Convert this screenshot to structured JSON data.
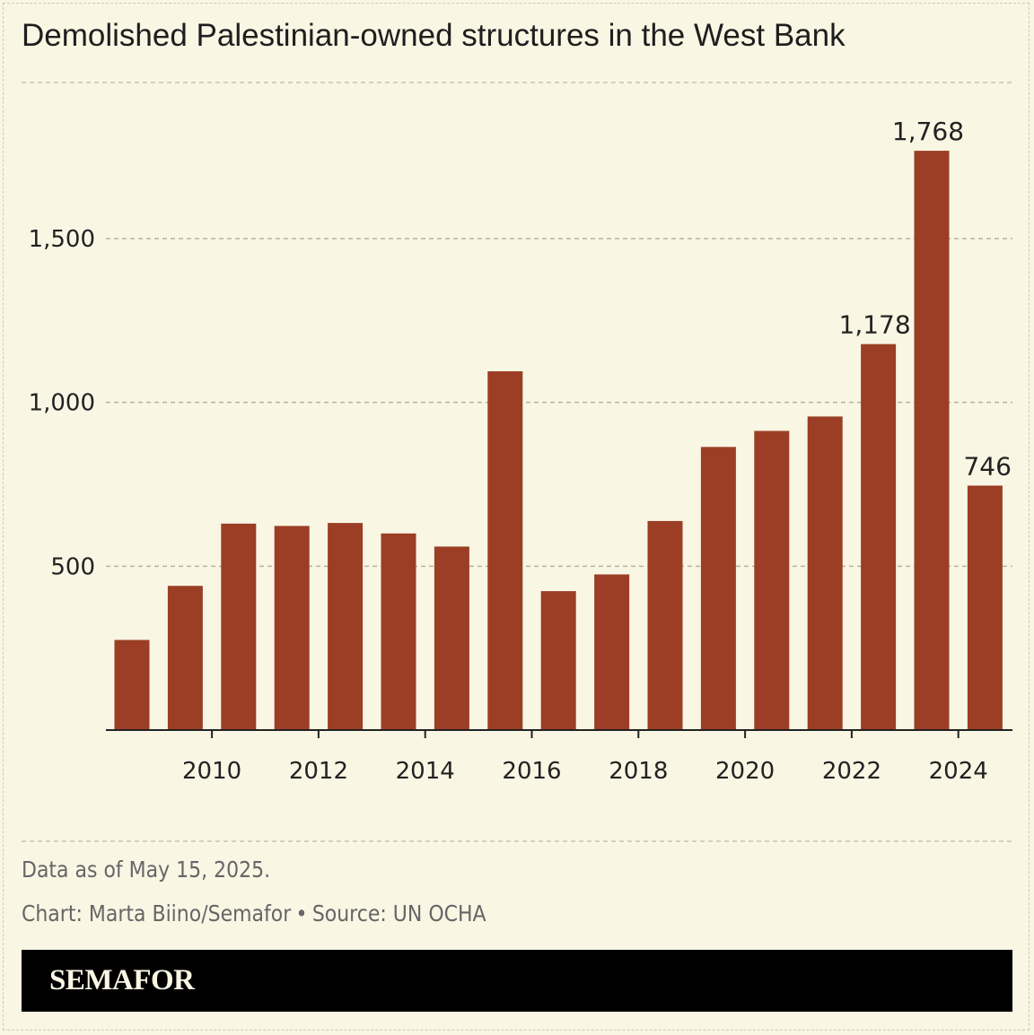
{
  "title": "Demolished Palestinian-owned structures in the West Bank",
  "notes": {
    "data_as_of": "Data as of May 15, 2025.",
    "chart_credit": "Chart: Marta Biino/Semafor",
    "separator": "•",
    "source": "Source: UN OCHA"
  },
  "brand": "SEMAFOR",
  "colors": {
    "background": "#f9f6e4",
    "bar": "#9b3e25",
    "footer": "#000000"
  },
  "chart_data": {
    "type": "bar",
    "title": "Demolished Palestinian-owned structures in the West Bank",
    "xlabel": "",
    "ylabel": "",
    "categories": [
      "2009",
      "2010",
      "2011",
      "2012",
      "2013",
      "2014",
      "2015",
      "2016",
      "2017",
      "2018",
      "2019",
      "2020",
      "2021",
      "2022",
      "2023",
      "2024",
      "2025"
    ],
    "values": [
      275,
      440,
      630,
      623,
      632,
      600,
      560,
      1095,
      424,
      475,
      638,
      864,
      913,
      957,
      1178,
      1768,
      746
    ],
    "ylim": [
      0,
      2000
    ],
    "yticks": [
      500,
      1000,
      1500
    ],
    "ytick_labels": [
      "500",
      "1,000",
      "1,500"
    ],
    "xticks": [
      "2010",
      "2012",
      "2014",
      "2016",
      "2018",
      "2020",
      "2022",
      "2024"
    ],
    "data_labels": [
      {
        "category": "2023",
        "label": "1,178"
      },
      {
        "category": "2024",
        "label": "1,768"
      },
      {
        "category": "2025",
        "label": "746"
      }
    ],
    "grid": true
  }
}
